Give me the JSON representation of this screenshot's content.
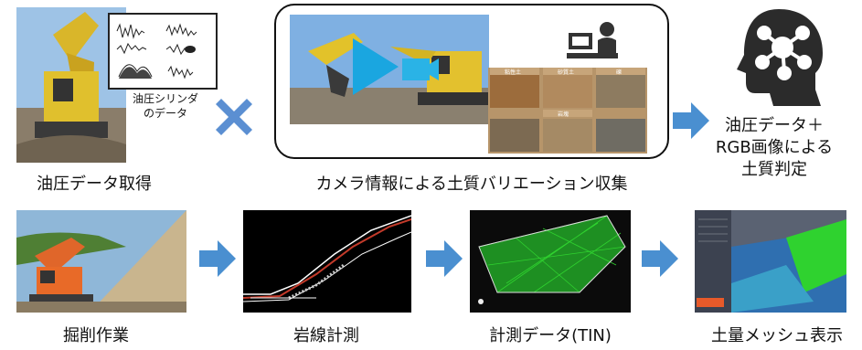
{
  "top_row": {
    "step1": {
      "caption": "油圧データ取得",
      "signal_label_line1": "油圧シリンダ",
      "signal_label_line2": "のデータ"
    },
    "step2": {
      "caption": "カメラ情報による土質バリエーション収集",
      "soil_labels": [
        "粘性土",
        "砂質土",
        "礫",
        "岩塊"
      ]
    },
    "step3": {
      "line1": "油圧データ＋",
      "line2": "RGB画像による",
      "line3": "土質判定"
    }
  },
  "bottom_row": {
    "captions": [
      "掘削作業",
      "岩線計測",
      "計測データ(TIN)",
      "土量メッシュ表示"
    ]
  },
  "colors": {
    "arrow": "#4a8fd0",
    "cross": "#5b8fd2",
    "brain": "#2b2b2b",
    "tin_green": "#2fd22f"
  }
}
